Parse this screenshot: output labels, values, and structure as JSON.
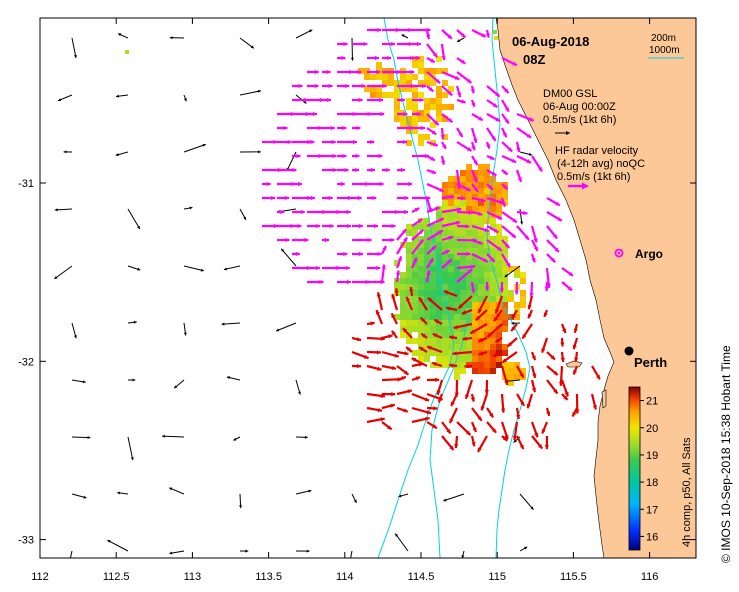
{
  "map": {
    "date": "06-Aug-2018",
    "hour": "08Z",
    "scale_short": "200m",
    "scale_long": "1000m",
    "gsl_title": "DM00 GSL",
    "gsl_time": "06-Aug 00:00Z",
    "gsl_scale": "0.5m/s (1kt 6h)",
    "hf_line1": "HF radar velocity",
    "hf_line2": "(4-12h avg) noQC",
    "hf_scale": "0.5m/s (1kt 6h)",
    "argo_label": "Argo",
    "city_label": "Perth",
    "credit": "© IMOS 10-Sep-2018 15:38 Hobart Time",
    "colorbar_label": "4h comp, p50, All Sats",
    "colorbar_ticks": [
      "21",
      "20",
      "19",
      "18",
      "17",
      "16"
    ],
    "lon_ticks": [
      "112",
      "112.5",
      "113",
      "113.5",
      "114",
      "114.5",
      "115",
      "115.5",
      "116"
    ],
    "lat_ticks": [
      "-31",
      "-32",
      "-33"
    ],
    "colors": {
      "land": "#fdc897",
      "isobath": "#00d2e6",
      "gsl_arrow": "#000000",
      "hf_north": "#ff00ff",
      "hf_south": "#e60000"
    },
    "sst_range": [
      15.5,
      21.5
    ],
    "extent": {
      "lon": [
        112,
        116.3
      ],
      "lat": [
        -33.1,
        -30.05
      ]
    }
  }
}
